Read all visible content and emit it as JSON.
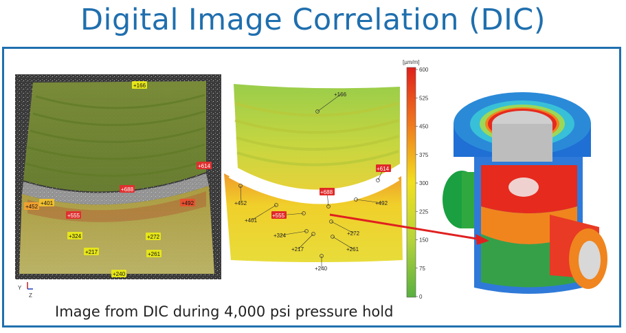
{
  "title": "Digital Image Correlation (DIC)",
  "caption": "Image from DIC during 4,000 psi pressure hold",
  "colorbar": {
    "unit": "[µm/m]",
    "ticks": [
      "600",
      "525",
      "450",
      "375",
      "300",
      "225",
      "150",
      "75",
      "0"
    ]
  },
  "axes_triad": {
    "y": "Y",
    "z": "Z"
  },
  "left_photo_labels": [
    {
      "text": "+166",
      "color": "#e6e619"
    },
    {
      "text": "+614",
      "color": "#e03030"
    },
    {
      "text": "+688",
      "color": "#e03030"
    },
    {
      "text": "+452",
      "color": "#f0a030"
    },
    {
      "text": "+401",
      "color": "#f0c030"
    },
    {
      "text": "+492",
      "color": "#e85030"
    },
    {
      "text": "+555",
      "color": "#e03030"
    },
    {
      "text": "+324",
      "color": "#e6e619"
    },
    {
      "text": "+272",
      "color": "#e6e619"
    },
    {
      "text": "+217",
      "color": "#e6e619"
    },
    {
      "text": "+261",
      "color": "#e6e619"
    },
    {
      "text": "+240",
      "color": "#e6e619"
    }
  ],
  "contour_labels": [
    {
      "text": "+166"
    },
    {
      "text": "+614"
    },
    {
      "text": "+688"
    },
    {
      "text": "+452"
    },
    {
      "text": "+401"
    },
    {
      "text": "+492"
    },
    {
      "text": "+555"
    },
    {
      "text": "+324"
    },
    {
      "text": "+272"
    },
    {
      "text": "+217"
    },
    {
      "text": "+261"
    },
    {
      "text": "+240"
    }
  ],
  "colors": {
    "frame": "#1f6fae",
    "title": "#1f6fae",
    "arrow": "#e02020"
  }
}
